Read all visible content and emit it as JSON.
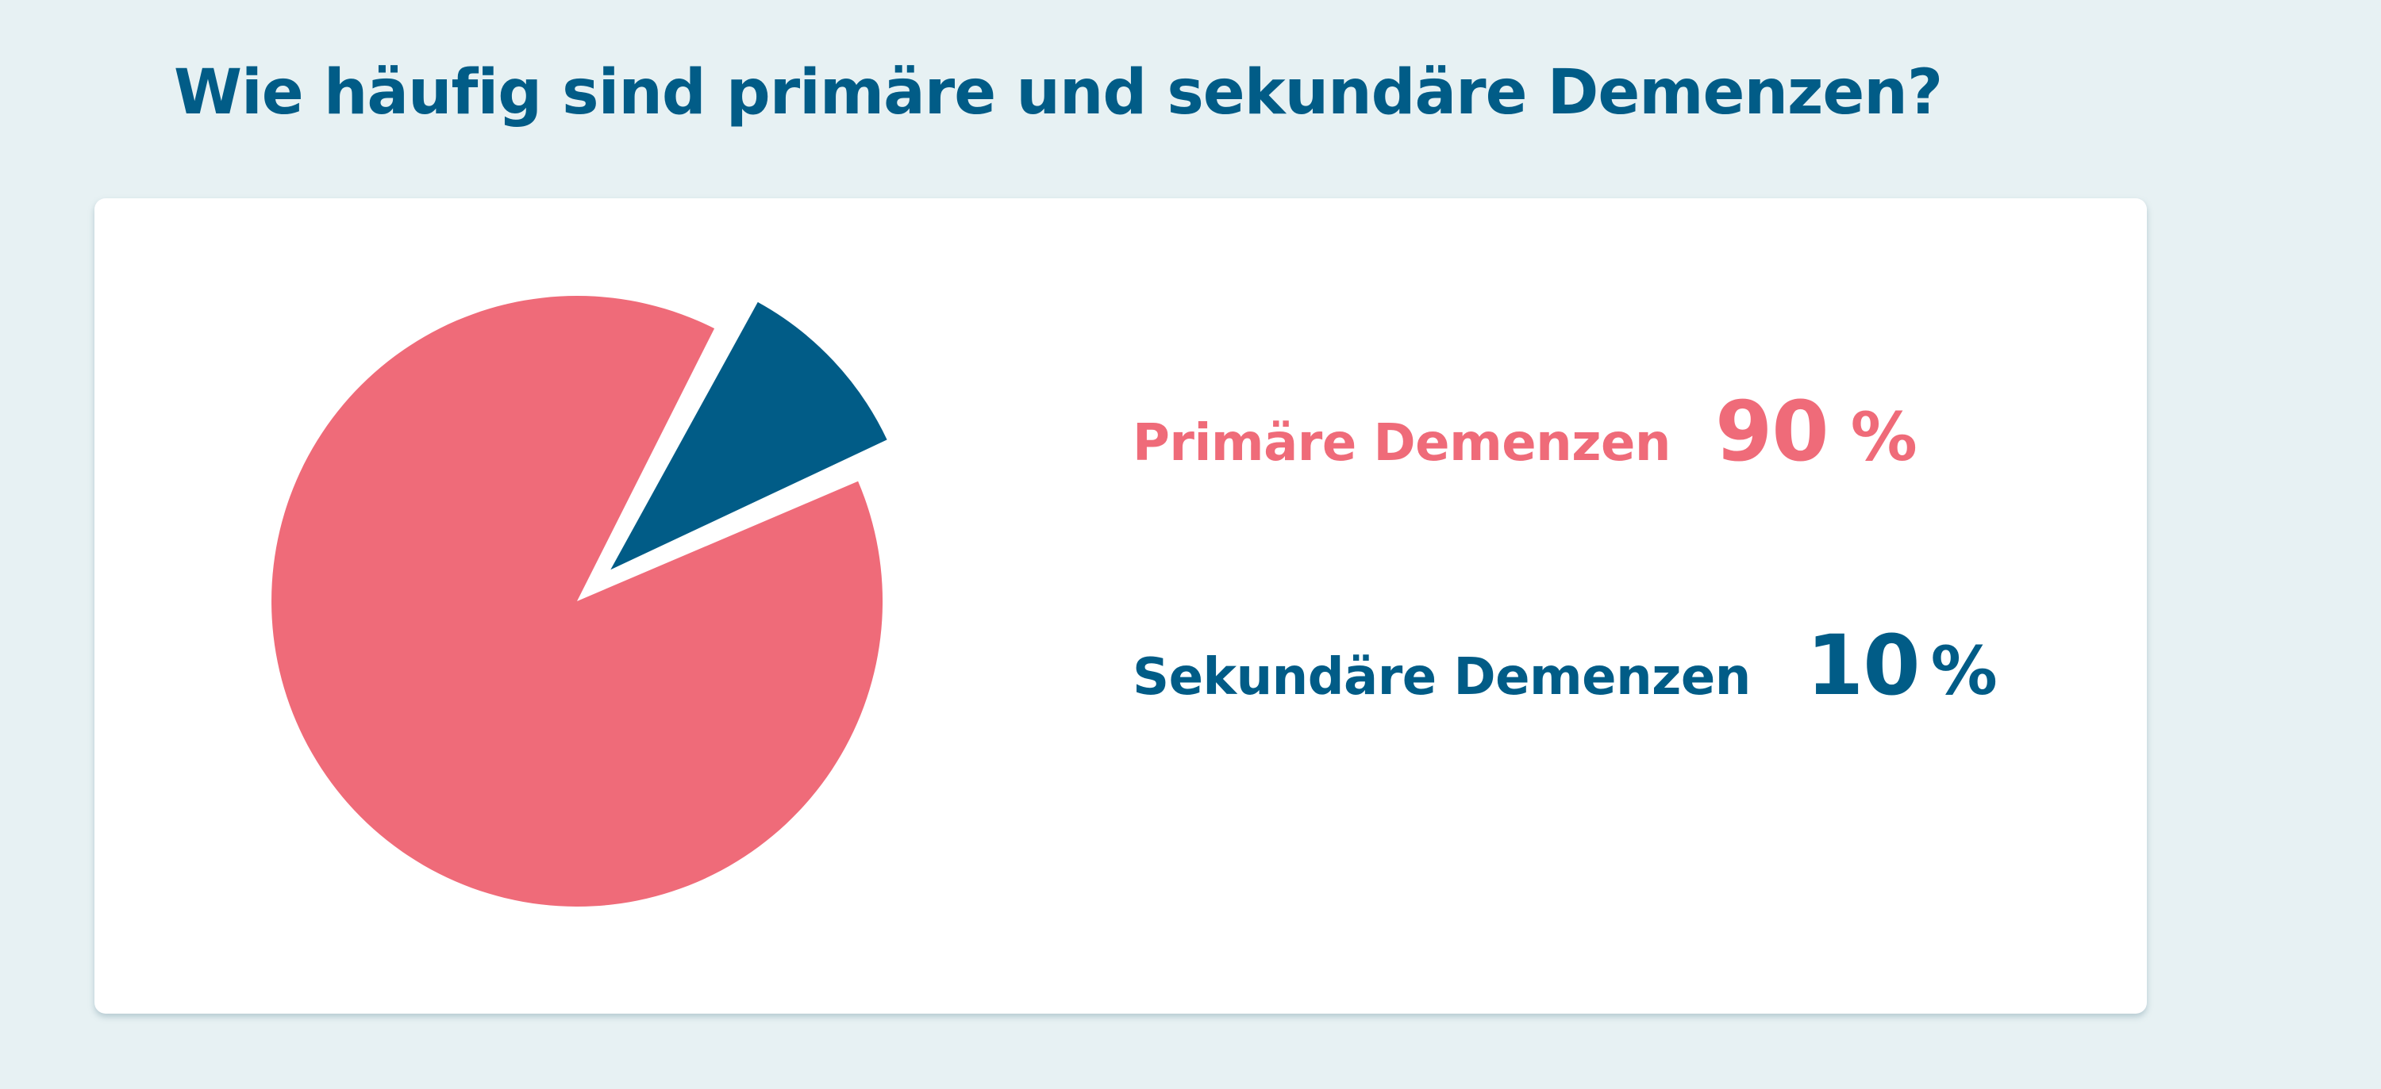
{
  "page": {
    "title": "Wie häufig sind primäre und sekundäre Demenzen?"
  },
  "colors": {
    "background": "#e7f1f3",
    "card": "#ffffff",
    "title": "#015c87",
    "primary": "#ef6b79",
    "secondary": "#015c87"
  },
  "chart_data": {
    "type": "pie",
    "title": "Wie häufig sind primäre und sekundäre Demenzen?",
    "categories": [
      "Primäre Demenzen",
      "Sekundäre Demenzen"
    ],
    "values": [
      90,
      10
    ],
    "unit": "%",
    "colors": [
      "#ef6b79",
      "#015c87"
    ],
    "exploded": [
      false,
      true
    ],
    "legend": "right",
    "legend_entries": [
      {
        "label": "Primäre Demenzen",
        "value": "90",
        "unit": "%"
      },
      {
        "label": "Sekundäre Demenzen",
        "value": "10",
        "unit": "%"
      }
    ]
  }
}
